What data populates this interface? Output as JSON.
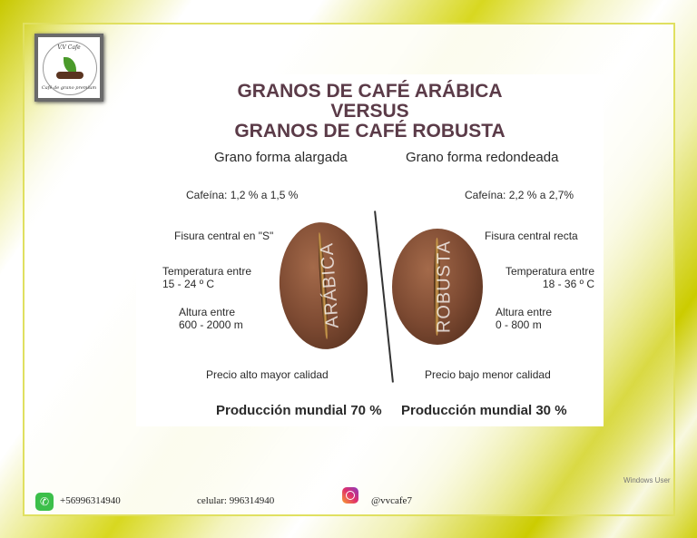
{
  "logo": {
    "top_text": "V.V Cafe",
    "bottom_text": "Café de grano premium"
  },
  "infographic": {
    "title_lines": [
      "GRANOS DE CAFÉ ARÁBICA",
      "VERSUS",
      "GRANOS DE CAFÉ ROBUSTA"
    ],
    "arabica": {
      "shape": "Grano forma alargada",
      "caffeine": "Cafeína:  1,2 % a 1,5 %",
      "fissure": "Fisura central en \"S\"",
      "temp_label": "Temperatura entre",
      "temp_value": "15 - 24 º C",
      "altitude_label": "Altura entre",
      "altitude_value": "600 - 2000 m",
      "price": "Precio alto mayor calidad",
      "production": "Producción mundial 70 %",
      "bean_label": "ARÁBICA"
    },
    "robusta": {
      "shape": "Grano forma redondeada",
      "caffeine": "Cafeína:  2,2 % a 2,7%",
      "fissure": "Fisura central recta",
      "temp_label": "Temperatura entre",
      "temp_value": "18 - 36 º C",
      "altitude_label": "Altura entre",
      "altitude_value": "0 - 800 m",
      "price": "Precio bajo menor calidad",
      "production": "Producción mundial 30 %",
      "bean_label": "ROBUSTA"
    }
  },
  "footer": {
    "whatsapp": "+56996314940",
    "cellphone": "celular: 996314940",
    "instagram": "@vvcafe7",
    "author": "Windows User"
  },
  "colors": {
    "background": "#cccc00",
    "title": "#5b3b48"
  }
}
